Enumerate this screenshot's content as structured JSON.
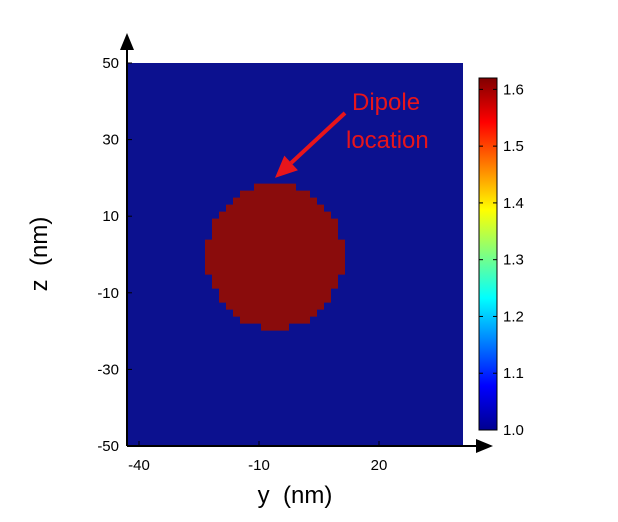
{
  "chart_data": {
    "type": "heatmap",
    "xlabel": "y  (nm)",
    "ylabel": "z  (nm)",
    "xlim": [
      -43,
      41
    ],
    "ylim": [
      -50,
      50
    ],
    "x_ticks": [
      -40,
      -10,
      20
    ],
    "y_ticks": [
      50,
      30,
      10,
      -10,
      -30,
      -50
    ],
    "background_value": 1.0,
    "particle": {
      "shape": "disk",
      "center_y": -6,
      "center_z": -0.5,
      "radius_y": 17,
      "radius_z": 19,
      "value": 1.6
    },
    "colorbar": {
      "min": 1.0,
      "max": 1.62,
      "ticks": [
        "1.6",
        "1.5",
        "1.4",
        "1.3",
        "1.2",
        "1.1",
        "1.0"
      ],
      "colormap": "jet",
      "placement": "right"
    },
    "annotation": {
      "lines": [
        "Dipole",
        "location"
      ],
      "color": "#e8151b",
      "points_to": {
        "y": -6,
        "z": 20
      }
    },
    "colors": {
      "background": "#0c118f",
      "particle": "#8a0c0c",
      "annotation": "#e8151b"
    }
  }
}
